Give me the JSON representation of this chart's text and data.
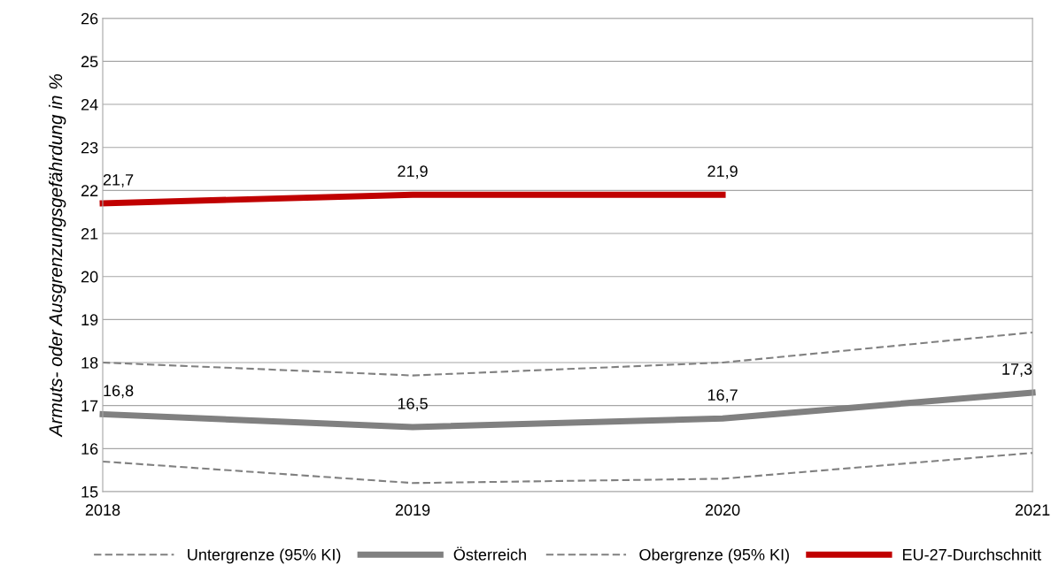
{
  "chart_data": {
    "type": "line",
    "ylabel": "Armuts- oder Ausgrenzungsgefährdung in %",
    "x": [
      2018,
      2019,
      2020,
      2021
    ],
    "xlim": [
      2018,
      2021
    ],
    "xticks": [
      2018,
      2019,
      2020,
      2021
    ],
    "ylim": [
      15,
      26
    ],
    "yticks": [
      15,
      16,
      17,
      18,
      19,
      20,
      21,
      22,
      23,
      24,
      25,
      26
    ],
    "grid": "y",
    "legend": "bottom",
    "series": [
      {
        "name": "Untergrenze (95% KI)",
        "color": "#808080",
        "line_style": "dashed",
        "values": [
          15.7,
          15.2,
          15.3,
          15.9
        ]
      },
      {
        "name": "Österreich",
        "color": "#808080",
        "line_style": "solid",
        "values": [
          16.8,
          16.5,
          16.7,
          17.3
        ],
        "value_labels": [
          "16,8",
          "16,5",
          "16,7",
          "17,3"
        ]
      },
      {
        "name": "Obergrenze (95% KI)",
        "color": "#808080",
        "line_style": "dashed",
        "values": [
          18.0,
          17.7,
          18.0,
          18.7
        ]
      },
      {
        "name": "EU-27-Durchschnitt",
        "color": "#c00000",
        "line_style": "solid",
        "values": [
          21.7,
          21.9,
          21.9,
          null
        ],
        "value_labels": [
          "21,7",
          "21,9",
          "21,9",
          null
        ]
      }
    ]
  }
}
